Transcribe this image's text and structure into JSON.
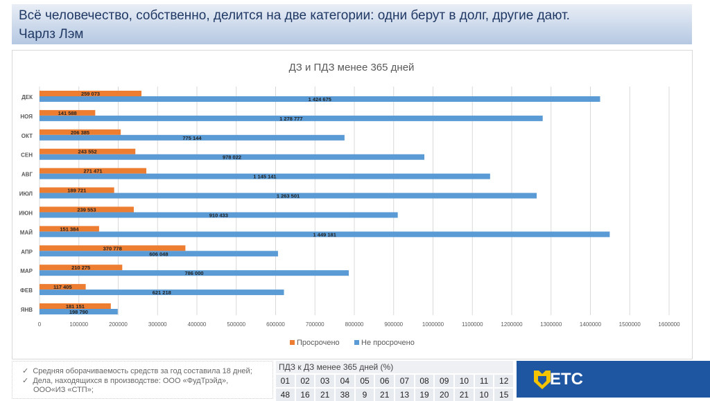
{
  "header": {
    "line1": "Всё человечество, собственно, делится на две категории: одни берут в долг, другие дают.",
    "line2": "Чарлз Лэм"
  },
  "chart_data": {
    "type": "bar",
    "orientation": "horizontal",
    "title": "ДЗ и ПДЗ менее 365 дней",
    "categories": [
      "ДЕК",
      "НОЯ",
      "ОКТ",
      "СЕН",
      "АВГ",
      "ИЮЛ",
      "ИЮН",
      "МАЙ",
      "АПР",
      "МАР",
      "ФЕВ",
      "ЯНВ"
    ],
    "series": [
      {
        "name": "Просрочено",
        "color": "#ed7d31",
        "values": [
          259073,
          141588,
          206385,
          243552,
          271471,
          189721,
          239553,
          151384,
          370778,
          210275,
          117405,
          181151
        ],
        "labels": [
          "259 073",
          "141 588",
          "206 385",
          "243 552",
          "271 471",
          "189 721",
          "239 553",
          "151 384",
          "370 778",
          "210 275",
          "117 405",
          "181 151"
        ]
      },
      {
        "name": "Не просрочено",
        "color": "#5b9bd5",
        "values": [
          1424675,
          1278777,
          775144,
          978022,
          1145141,
          1263501,
          910433,
          1449181,
          606048,
          786000,
          621218,
          198790
        ],
        "labels": [
          "1 424 675",
          "1 278 777",
          "775 144",
          "978 022",
          "1 145 141",
          "1 263 501",
          "910 433",
          "1 449 181",
          "606 048",
          "786 000",
          "621 218",
          "198 790"
        ]
      }
    ],
    "xlim": [
      0,
      1600000
    ],
    "xticks": [
      "0",
      "100000",
      "200000",
      "300000",
      "400000",
      "500000",
      "600000",
      "700000",
      "800000",
      "900000",
      "1000000",
      "1100000",
      "1200000",
      "1300000",
      "1400000",
      "1500000",
      "1600000"
    ],
    "legend": "bottom",
    "grid": true
  },
  "notes": [
    "Средняя оборачиваемость средств за год составила 18 дней;",
    "Дела, находящихся в производстве: ООО «ФудТрэйд»,",
    "ООО«ИЗ «СТП»;"
  ],
  "check": "✓",
  "table": {
    "caption": "ПДЗ к ДЗ менее 365 дней (%)",
    "months": [
      "01",
      "02",
      "03",
      "04",
      "05",
      "06",
      "07",
      "08",
      "09",
      "10",
      "11",
      "12"
    ],
    "values": [
      "48",
      "16",
      "21",
      "38",
      "9",
      "21",
      "13",
      "19",
      "20",
      "21",
      "10",
      "15"
    ]
  },
  "logo": "ETC"
}
